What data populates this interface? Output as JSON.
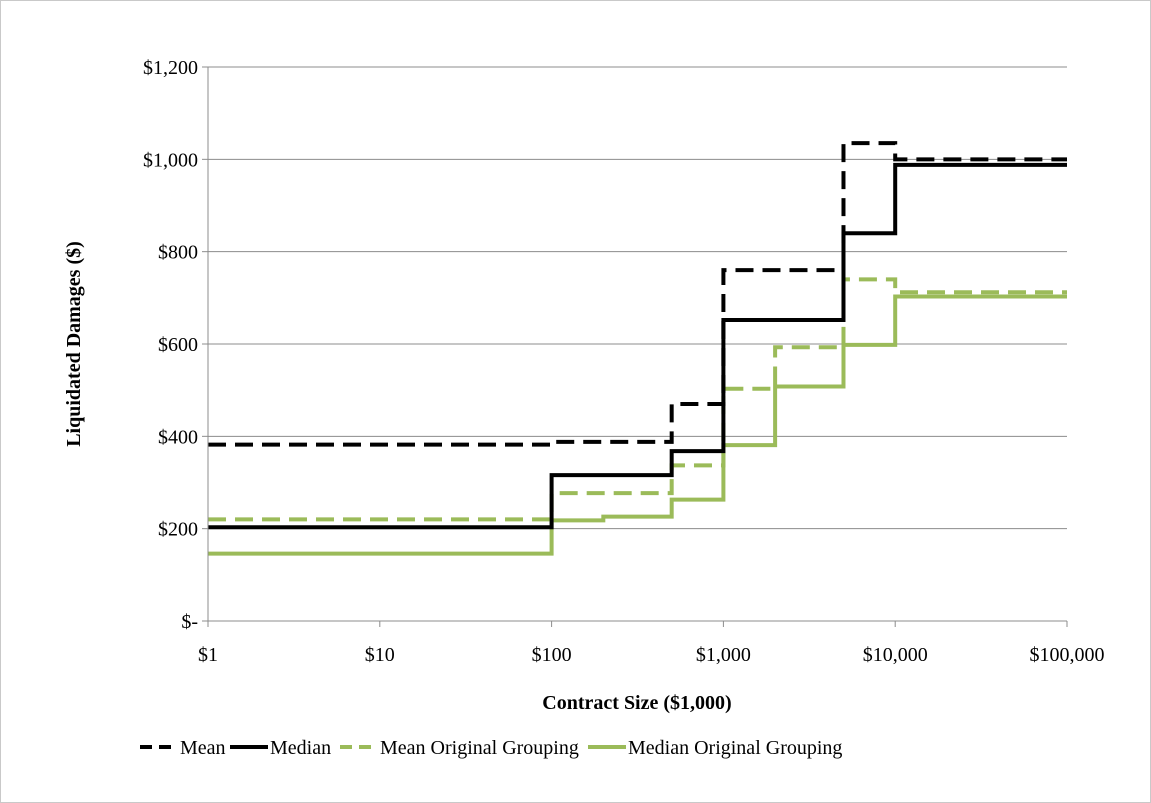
{
  "chart_data": {
    "type": "line",
    "step": true,
    "xscale": "log",
    "xlim": [
      1,
      100000
    ],
    "ylim": [
      0,
      1200
    ],
    "xlabel": "Contract Size ($1,000)",
    "ylabel": "Liquidated Damages ($)",
    "x_ticks": [
      1,
      10,
      100,
      1000,
      10000,
      100000
    ],
    "x_tick_labels": [
      "$1",
      "$10",
      "$100",
      "$1,000",
      "$10,000",
      "$100,000"
    ],
    "y_ticks": [
      0,
      200,
      400,
      600,
      800,
      1000,
      1200
    ],
    "y_tick_labels": [
      "$-",
      "$200",
      "$400",
      "$600",
      "$800",
      "$1,000",
      "$1,200"
    ],
    "grid": "horizontal",
    "legend_position": "bottom",
    "series": [
      {
        "name": "Mean",
        "color": "#000000",
        "dash": "dashed",
        "points": [
          [
            1,
            382
          ],
          [
            100,
            388
          ],
          [
            500,
            470
          ],
          [
            1000,
            760
          ],
          [
            5000,
            1035
          ],
          [
            10000,
            1000
          ],
          [
            100000,
            1000
          ]
        ]
      },
      {
        "name": "Median",
        "color": "#000000",
        "dash": "solid",
        "points": [
          [
            1,
            203
          ],
          [
            100,
            316
          ],
          [
            500,
            368
          ],
          [
            1000,
            652
          ],
          [
            5000,
            840
          ],
          [
            10000,
            988
          ],
          [
            100000,
            988
          ]
        ]
      },
      {
        "name": "Mean Original Grouping",
        "color": "#9bbb59",
        "dash": "dashed",
        "points": [
          [
            1,
            220
          ],
          [
            100,
            277
          ],
          [
            500,
            337
          ],
          [
            1000,
            503
          ],
          [
            2000,
            593
          ],
          [
            5000,
            740
          ],
          [
            10000,
            712
          ],
          [
            100000,
            712
          ]
        ]
      },
      {
        "name": "Median Original Grouping",
        "color": "#9bbb59",
        "dash": "solid",
        "points": [
          [
            1,
            146
          ],
          [
            100,
            218
          ],
          [
            200,
            226
          ],
          [
            500,
            263
          ],
          [
            1000,
            381
          ],
          [
            2000,
            508
          ],
          [
            5000,
            598
          ],
          [
            10000,
            703
          ],
          [
            100000,
            703
          ]
        ]
      }
    ]
  }
}
